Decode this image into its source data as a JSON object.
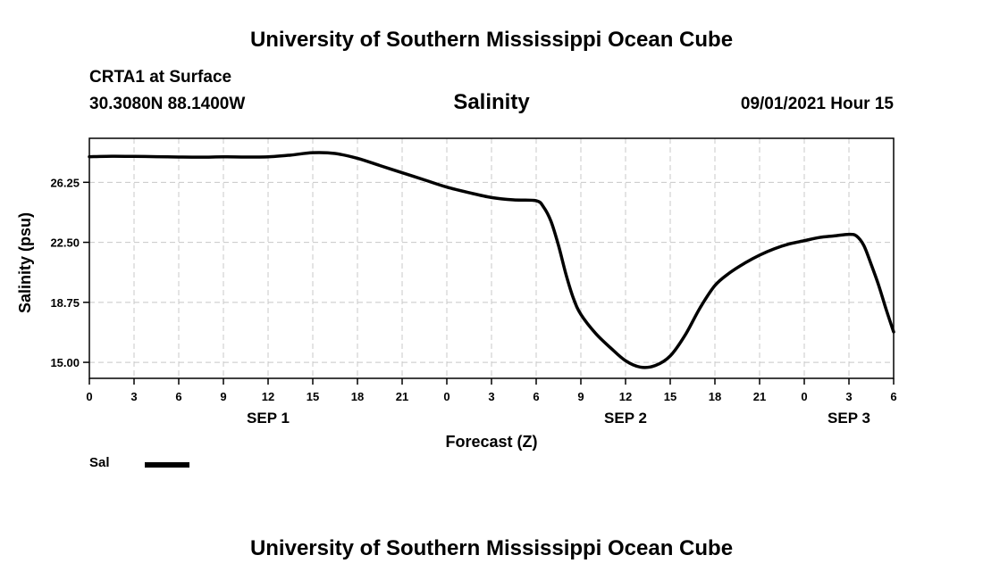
{
  "header": {
    "top_title": "University of Southern Mississippi Ocean Cube",
    "bottom_title": "University of Southern Mississippi Ocean Cube",
    "station": "CRTA1 at Surface",
    "coordinates": "30.3080N  88.1400W",
    "chart_title": "Salinity",
    "datetime": "09/01/2021 Hour 15"
  },
  "legend": {
    "label": "Sal",
    "color": "#000000"
  },
  "chart_data": {
    "type": "line",
    "title": "Salinity",
    "xlabel": "Forecast (Z)",
    "ylabel": "Salinity (psu)",
    "xlim": [
      0,
      54
    ],
    "ylim": [
      14.0,
      29.0
    ],
    "x_tick_values": [
      0,
      3,
      6,
      9,
      12,
      15,
      18,
      21,
      24,
      27,
      30,
      33,
      36,
      39,
      42,
      45,
      48,
      51,
      54
    ],
    "x_tick_labels": [
      "0",
      "3",
      "6",
      "9",
      "12",
      "15",
      "18",
      "21",
      "0",
      "3",
      "6",
      "9",
      "12",
      "15",
      "18",
      "21",
      "0",
      "3",
      "6"
    ],
    "y_tick_values": [
      15.0,
      18.75,
      22.5,
      26.25
    ],
    "y_tick_labels": [
      "15.00",
      "18.75",
      "22.50",
      "26.25"
    ],
    "date_labels": [
      {
        "label": "SEP 1",
        "x": 12
      },
      {
        "label": "SEP 2",
        "x": 36
      },
      {
        "label": "SEP 3",
        "x": 51
      }
    ],
    "grid": true,
    "series": [
      {
        "name": "Sal",
        "color": "#000000",
        "x": [
          0,
          1.5,
          3,
          4.5,
          6,
          7.5,
          9,
          10.5,
          12,
          13.5,
          15,
          16.5,
          18,
          19.5,
          21,
          22.5,
          24,
          25.5,
          27,
          28.5,
          30,
          30.5,
          31,
          31.5,
          32,
          32.5,
          33,
          34,
          35,
          36,
          37,
          38,
          39,
          40,
          41,
          42,
          43,
          44,
          45,
          46,
          47,
          48,
          49,
          50,
          51,
          51.5,
          52,
          52.5,
          53,
          53.5,
          54
        ],
        "y": [
          27.85,
          27.88,
          27.87,
          27.85,
          27.83,
          27.82,
          27.84,
          27.83,
          27.84,
          27.95,
          28.1,
          28.05,
          27.75,
          27.3,
          26.85,
          26.4,
          25.95,
          25.6,
          25.3,
          25.15,
          25.1,
          24.7,
          23.8,
          22.3,
          20.5,
          19.0,
          18.0,
          16.8,
          15.9,
          15.1,
          14.7,
          14.8,
          15.4,
          16.7,
          18.4,
          19.8,
          20.6,
          21.2,
          21.7,
          22.1,
          22.4,
          22.6,
          22.8,
          22.9,
          23.0,
          22.9,
          22.3,
          21.1,
          19.8,
          18.3,
          16.9
        ]
      }
    ]
  }
}
